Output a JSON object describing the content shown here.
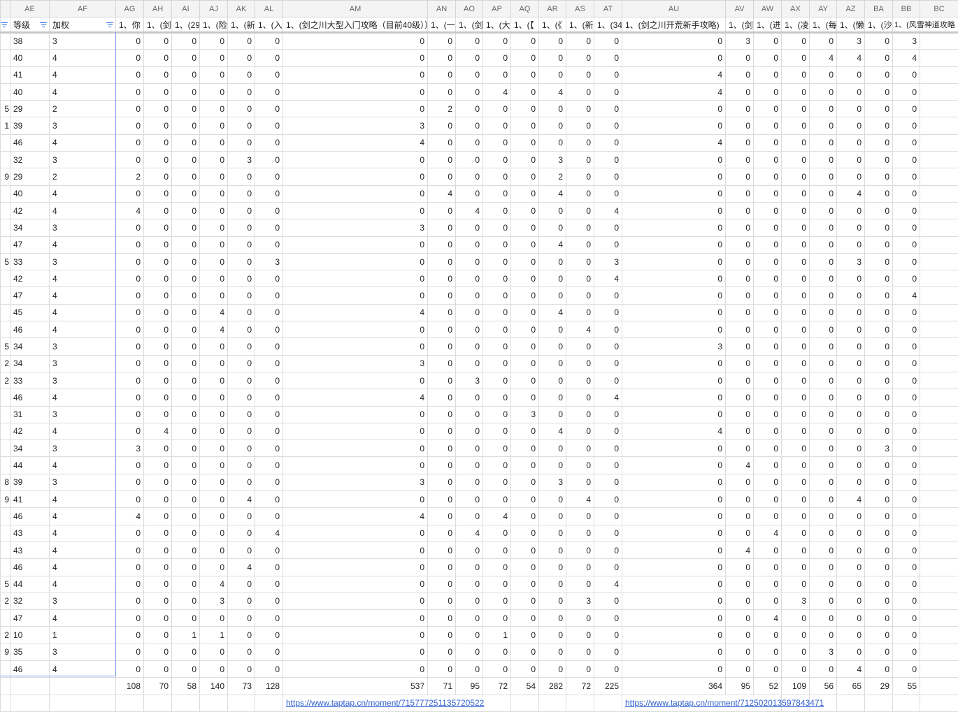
{
  "columns": [
    "",
    "AE",
    "AF",
    "AG",
    "AH",
    "AI",
    "AJ",
    "AK",
    "AL",
    "AM",
    "AN",
    "AO",
    "AP",
    "AQ",
    "AR",
    "AS",
    "AT",
    "AU",
    "AV",
    "AW",
    "AX",
    "AY",
    "AZ",
    "BA",
    "BB",
    "BC"
  ],
  "field_headers": [
    "",
    "等级",
    "加权",
    "1、你",
    "1、(剑",
    "1、(29",
    "1、(险",
    "1、(新",
    "1、(入",
    "1、(剑之川大型入门攻略（目前40级））",
    "1、(一",
    "1、(剑",
    "1、(大",
    "1、(【",
    "1、(《",
    "1、(新",
    "1、(34",
    "1、(剑之川开荒新手攻略)",
    "1、(剑",
    "1、(进",
    "1、(凌",
    "1、(每",
    "1、(懒",
    "1、(沙",
    "1、(风雪神道攻略",
    ""
  ],
  "filter_icon": "filter-icon",
  "accent_color": "#3f7ee8",
  "rows": [
    {
      "p": "",
      "lv": "38",
      "w": "3",
      "v": [
        0,
        0,
        0,
        0,
        0,
        0,
        0,
        0,
        0,
        0,
        0,
        0,
        0,
        0,
        0,
        3,
        0,
        0,
        0,
        3,
        0,
        3
      ]
    },
    {
      "p": "",
      "lv": "40",
      "w": "4",
      "v": [
        0,
        0,
        0,
        0,
        0,
        0,
        0,
        0,
        0,
        0,
        0,
        0,
        0,
        0,
        0,
        0,
        0,
        0,
        4,
        4,
        0,
        4
      ]
    },
    {
      "p": "",
      "lv": "41",
      "w": "4",
      "v": [
        0,
        0,
        0,
        0,
        0,
        0,
        0,
        0,
        0,
        0,
        0,
        0,
        0,
        0,
        4,
        0,
        0,
        0,
        0,
        0,
        0,
        0
      ]
    },
    {
      "p": "",
      "lv": "40",
      "w": "4",
      "v": [
        0,
        0,
        0,
        0,
        0,
        0,
        0,
        0,
        0,
        4,
        0,
        4,
        0,
        0,
        4,
        0,
        0,
        0,
        0,
        0,
        0,
        0
      ]
    },
    {
      "p": "5",
      "lv": "29",
      "w": "2",
      "v": [
        0,
        0,
        0,
        0,
        0,
        0,
        0,
        2,
        0,
        0,
        0,
        0,
        0,
        0,
        0,
        0,
        0,
        0,
        0,
        0,
        0,
        0
      ]
    },
    {
      "p": "1",
      "lv": "39",
      "w": "3",
      "v": [
        0,
        0,
        0,
        0,
        0,
        0,
        3,
        0,
        0,
        0,
        0,
        0,
        0,
        0,
        0,
        0,
        0,
        0,
        0,
        0,
        0,
        0
      ]
    },
    {
      "p": "",
      "lv": "46",
      "w": "4",
      "v": [
        0,
        0,
        0,
        0,
        0,
        0,
        4,
        0,
        0,
        0,
        0,
        0,
        0,
        0,
        4,
        0,
        0,
        0,
        0,
        0,
        0,
        0
      ]
    },
    {
      "p": "",
      "lv": "32",
      "w": "3",
      "v": [
        0,
        0,
        0,
        0,
        3,
        0,
        0,
        0,
        0,
        0,
        0,
        3,
        0,
        0,
        0,
        0,
        0,
        0,
        0,
        0,
        0,
        0
      ]
    },
    {
      "p": "9",
      "lv": "29",
      "w": "2",
      "v": [
        2,
        0,
        0,
        0,
        0,
        0,
        0,
        0,
        0,
        0,
        0,
        2,
        0,
        0,
        0,
        0,
        0,
        0,
        0,
        0,
        0,
        0
      ]
    },
    {
      "p": "",
      "lv": "40",
      "w": "4",
      "v": [
        0,
        0,
        0,
        0,
        0,
        0,
        0,
        4,
        0,
        0,
        0,
        4,
        0,
        0,
        0,
        0,
        0,
        0,
        0,
        4,
        0,
        0
      ]
    },
    {
      "p": "",
      "lv": "42",
      "w": "4",
      "v": [
        4,
        0,
        0,
        0,
        0,
        0,
        0,
        0,
        4,
        0,
        0,
        0,
        0,
        4,
        0,
        0,
        0,
        0,
        0,
        0,
        0,
        0
      ]
    },
    {
      "p": "",
      "lv": "34",
      "w": "3",
      "v": [
        0,
        0,
        0,
        0,
        0,
        0,
        3,
        0,
        0,
        0,
        0,
        0,
        0,
        0,
        0,
        0,
        0,
        0,
        0,
        0,
        0,
        0
      ]
    },
    {
      "p": "",
      "lv": "47",
      "w": "4",
      "v": [
        0,
        0,
        0,
        0,
        0,
        0,
        0,
        0,
        0,
        0,
        0,
        4,
        0,
        0,
        0,
        0,
        0,
        0,
        0,
        0,
        0,
        0
      ]
    },
    {
      "p": "5",
      "lv": "33",
      "w": "3",
      "v": [
        0,
        0,
        0,
        0,
        0,
        3,
        0,
        0,
        0,
        0,
        0,
        0,
        0,
        3,
        0,
        0,
        0,
        0,
        0,
        3,
        0,
        0
      ]
    },
    {
      "p": "",
      "lv": "42",
      "w": "4",
      "v": [
        0,
        0,
        0,
        0,
        0,
        0,
        0,
        0,
        0,
        0,
        0,
        0,
        0,
        4,
        0,
        0,
        0,
        0,
        0,
        0,
        0,
        0
      ]
    },
    {
      "p": "",
      "lv": "47",
      "w": "4",
      "v": [
        0,
        0,
        0,
        0,
        0,
        0,
        0,
        0,
        0,
        0,
        0,
        0,
        0,
        0,
        0,
        0,
        0,
        0,
        0,
        0,
        0,
        4
      ]
    },
    {
      "p": "",
      "lv": "45",
      "w": "4",
      "v": [
        0,
        0,
        0,
        4,
        0,
        0,
        4,
        0,
        0,
        0,
        0,
        4,
        0,
        0,
        0,
        0,
        0,
        0,
        0,
        0,
        0,
        0
      ]
    },
    {
      "p": "",
      "lv": "46",
      "w": "4",
      "v": [
        0,
        0,
        0,
        4,
        0,
        0,
        0,
        0,
        0,
        0,
        0,
        0,
        4,
        0,
        0,
        0,
        0,
        0,
        0,
        0,
        0,
        0
      ]
    },
    {
      "p": "5",
      "lv": "34",
      "w": "3",
      "v": [
        0,
        0,
        0,
        0,
        0,
        0,
        0,
        0,
        0,
        0,
        0,
        0,
        0,
        0,
        3,
        0,
        0,
        0,
        0,
        0,
        0,
        0
      ]
    },
    {
      "p": "2",
      "lv": "34",
      "w": "3",
      "v": [
        0,
        0,
        0,
        0,
        0,
        0,
        3,
        0,
        0,
        0,
        0,
        0,
        0,
        0,
        0,
        0,
        0,
        0,
        0,
        0,
        0,
        0
      ]
    },
    {
      "p": "2",
      "lv": "33",
      "w": "3",
      "v": [
        0,
        0,
        0,
        0,
        0,
        0,
        0,
        0,
        3,
        0,
        0,
        0,
        0,
        0,
        0,
        0,
        0,
        0,
        0,
        0,
        0,
        0
      ]
    },
    {
      "p": "",
      "lv": "46",
      "w": "4",
      "v": [
        0,
        0,
        0,
        0,
        0,
        0,
        4,
        0,
        0,
        0,
        0,
        0,
        0,
        4,
        0,
        0,
        0,
        0,
        0,
        0,
        0,
        0
      ]
    },
    {
      "p": "",
      "lv": "31",
      "w": "3",
      "v": [
        0,
        0,
        0,
        0,
        0,
        0,
        0,
        0,
        0,
        0,
        3,
        0,
        0,
        0,
        0,
        0,
        0,
        0,
        0,
        0,
        0,
        0
      ]
    },
    {
      "p": "",
      "lv": "42",
      "w": "4",
      "v": [
        0,
        4,
        0,
        0,
        0,
        0,
        0,
        0,
        0,
        0,
        0,
        4,
        0,
        0,
        4,
        0,
        0,
        0,
        0,
        0,
        0,
        0
      ]
    },
    {
      "p": "",
      "lv": "34",
      "w": "3",
      "v": [
        3,
        0,
        0,
        0,
        0,
        0,
        0,
        0,
        0,
        0,
        0,
        0,
        0,
        0,
        0,
        0,
        0,
        0,
        0,
        0,
        3,
        0
      ]
    },
    {
      "p": "",
      "lv": "44",
      "w": "4",
      "v": [
        0,
        0,
        0,
        0,
        0,
        0,
        0,
        0,
        0,
        0,
        0,
        0,
        0,
        0,
        0,
        4,
        0,
        0,
        0,
        0,
        0,
        0
      ]
    },
    {
      "p": "8",
      "lv": "39",
      "w": "3",
      "v": [
        0,
        0,
        0,
        0,
        0,
        0,
        3,
        0,
        0,
        0,
        0,
        3,
        0,
        0,
        0,
        0,
        0,
        0,
        0,
        0,
        0,
        0
      ]
    },
    {
      "p": "9",
      "lv": "41",
      "w": "4",
      "v": [
        0,
        0,
        0,
        0,
        4,
        0,
        0,
        0,
        0,
        0,
        0,
        0,
        4,
        0,
        0,
        0,
        0,
        0,
        0,
        4,
        0,
        0
      ]
    },
    {
      "p": "",
      "lv": "46",
      "w": "4",
      "v": [
        4,
        0,
        0,
        0,
        0,
        0,
        4,
        0,
        0,
        4,
        0,
        0,
        0,
        0,
        0,
        0,
        0,
        0,
        0,
        0,
        0,
        0
      ]
    },
    {
      "p": "",
      "lv": "43",
      "w": "4",
      "v": [
        0,
        0,
        0,
        0,
        0,
        4,
        0,
        0,
        4,
        0,
        0,
        0,
        0,
        0,
        0,
        0,
        4,
        0,
        0,
        0,
        0,
        0
      ]
    },
    {
      "p": "",
      "lv": "43",
      "w": "4",
      "v": [
        0,
        0,
        0,
        0,
        0,
        0,
        0,
        0,
        0,
        0,
        0,
        0,
        0,
        0,
        0,
        4,
        0,
        0,
        0,
        0,
        0,
        0
      ]
    },
    {
      "p": "",
      "lv": "46",
      "w": "4",
      "v": [
        0,
        0,
        0,
        0,
        4,
        0,
        0,
        0,
        0,
        0,
        0,
        0,
        0,
        0,
        0,
        0,
        0,
        0,
        0,
        0,
        0,
        0
      ]
    },
    {
      "p": "5",
      "lv": "44",
      "w": "4",
      "v": [
        0,
        0,
        0,
        4,
        0,
        0,
        0,
        0,
        0,
        0,
        0,
        0,
        0,
        4,
        0,
        0,
        0,
        0,
        0,
        0,
        0,
        0
      ]
    },
    {
      "p": "2",
      "lv": "32",
      "w": "3",
      "v": [
        0,
        0,
        0,
        3,
        0,
        0,
        0,
        0,
        0,
        0,
        0,
        0,
        3,
        0,
        0,
        0,
        0,
        3,
        0,
        0,
        0,
        0
      ]
    },
    {
      "p": "",
      "lv": "47",
      "w": "4",
      "v": [
        0,
        0,
        0,
        0,
        0,
        0,
        0,
        0,
        0,
        0,
        0,
        0,
        0,
        0,
        0,
        0,
        4,
        0,
        0,
        0,
        0,
        0
      ]
    },
    {
      "p": "2",
      "lv": "10",
      "w": "1",
      "v": [
        0,
        0,
        1,
        1,
        0,
        0,
        0,
        0,
        0,
        1,
        0,
        0,
        0,
        0,
        0,
        0,
        0,
        0,
        0,
        0,
        0,
        0
      ]
    },
    {
      "p": "9",
      "lv": "35",
      "w": "3",
      "v": [
        0,
        0,
        0,
        0,
        0,
        0,
        0,
        0,
        0,
        0,
        0,
        0,
        0,
        0,
        0,
        0,
        0,
        0,
        3,
        0,
        0,
        0
      ]
    },
    {
      "p": "",
      "lv": "46",
      "w": "4",
      "v": [
        0,
        0,
        0,
        0,
        0,
        0,
        0,
        0,
        0,
        0,
        0,
        0,
        0,
        0,
        0,
        0,
        0,
        0,
        0,
        4,
        0,
        0
      ]
    }
  ],
  "totals": [
    108,
    70,
    58,
    140,
    73,
    128,
    537,
    71,
    95,
    72,
    54,
    282,
    72,
    225,
    364,
    95,
    52,
    109,
    56,
    65,
    29,
    55
  ],
  "links": {
    "am": "https://www.taptap.cn/moment/715777251135720522",
    "au": "https://www.taptap.cn/moment/712502013597843471"
  }
}
